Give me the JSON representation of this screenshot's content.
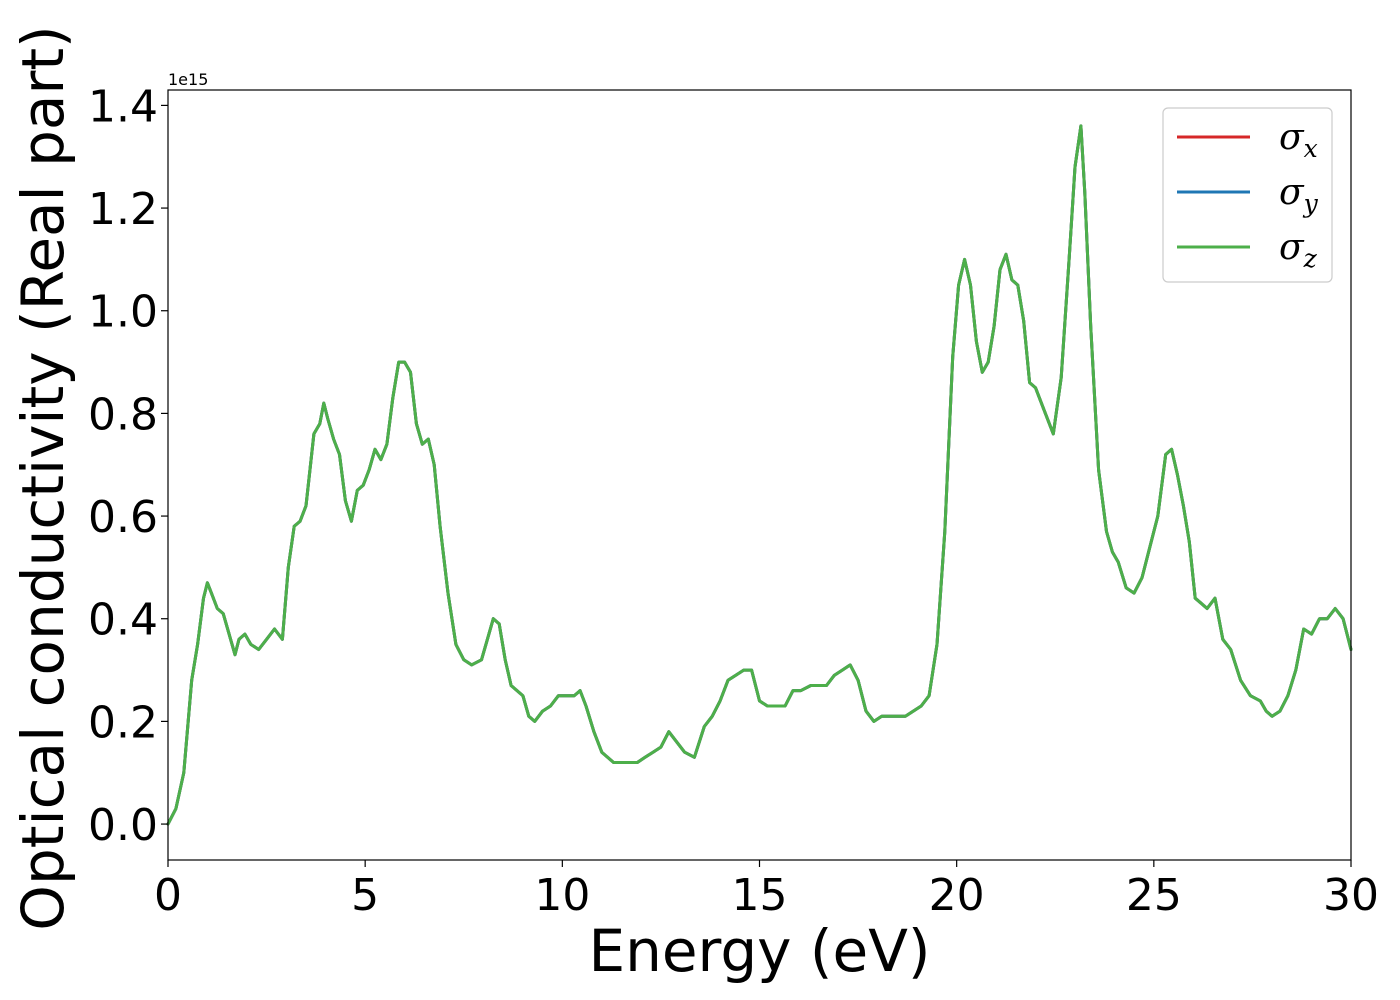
{
  "chart_data": {
    "type": "line",
    "xlabel": "Energy (eV)",
    "ylabel": "Optical conductivity (Real part)",
    "y_offset_label": "1e15",
    "y_scale": 1000000000000000.0,
    "xlim": [
      0,
      30
    ],
    "ylim": [
      -0.07,
      1.43
    ],
    "x_ticks": [
      0,
      5,
      10,
      15,
      20,
      25,
      30
    ],
    "x_tick_labels": [
      "0",
      "5",
      "10",
      "15",
      "20",
      "25",
      "30"
    ],
    "y_ticks": [
      0.0,
      0.2,
      0.4,
      0.6,
      0.8,
      1.0,
      1.2,
      1.4
    ],
    "y_tick_labels": [
      "0.0",
      "0.2",
      "0.4",
      "0.6",
      "0.8",
      "1.0",
      "1.2",
      "1.4"
    ],
    "grid": false,
    "legend_position": "top-right",
    "legend": [
      {
        "symbol": "σ",
        "sub": "x",
        "color": "#d62728"
      },
      {
        "symbol": "σ",
        "sub": "y",
        "color": "#1f77b4"
      },
      {
        "symbol": "σ",
        "sub": "z",
        "color": "#4daf4a"
      }
    ],
    "series_colors": [
      "#d62728",
      "#1f77b4",
      "#4daf4a"
    ],
    "x": [
      0,
      0.2,
      0.4,
      0.6,
      0.75,
      0.9,
      1.0,
      1.1,
      1.25,
      1.4,
      1.55,
      1.7,
      1.8,
      1.95,
      2.1,
      2.3,
      2.5,
      2.7,
      2.9,
      3.05,
      3.2,
      3.35,
      3.5,
      3.7,
      3.85,
      3.95,
      4.05,
      4.2,
      4.35,
      4.5,
      4.65,
      4.8,
      4.95,
      5.1,
      5.25,
      5.4,
      5.55,
      5.7,
      5.85,
      6.0,
      6.15,
      6.3,
      6.45,
      6.6,
      6.75,
      6.9,
      7.1,
      7.3,
      7.5,
      7.7,
      7.95,
      8.1,
      8.25,
      8.4,
      8.55,
      8.7,
      8.85,
      9.0,
      9.15,
      9.3,
      9.5,
      9.7,
      9.9,
      10.1,
      10.3,
      10.45,
      10.6,
      10.8,
      11.0,
      11.3,
      11.6,
      11.9,
      12.1,
      12.3,
      12.5,
      12.7,
      12.9,
      13.1,
      13.35,
      13.6,
      13.8,
      14.0,
      14.2,
      14.4,
      14.6,
      14.8,
      15.0,
      15.2,
      15.45,
      15.65,
      15.85,
      16.05,
      16.3,
      16.5,
      16.7,
      16.9,
      17.1,
      17.3,
      17.5,
      17.7,
      17.9,
      18.1,
      18.3,
      18.5,
      18.7,
      18.9,
      19.1,
      19.3,
      19.5,
      19.7,
      19.9,
      20.05,
      20.2,
      20.35,
      20.5,
      20.65,
      20.8,
      20.95,
      21.1,
      21.25,
      21.4,
      21.55,
      21.7,
      21.85,
      22.0,
      22.2,
      22.45,
      22.65,
      22.85,
      23.0,
      23.15,
      23.25,
      23.4,
      23.6,
      23.8,
      23.95,
      24.1,
      24.3,
      24.5,
      24.7,
      24.9,
      25.1,
      25.3,
      25.45,
      25.6,
      25.75,
      25.9,
      26.05,
      26.2,
      26.35,
      26.55,
      26.75,
      26.95,
      27.2,
      27.45,
      27.7,
      27.85,
      28.0,
      28.2,
      28.4,
      28.6,
      28.8,
      29.0,
      29.2,
      29.4,
      29.6,
      29.8,
      30.0
    ],
    "series": [
      {
        "values": [
          0.0,
          0.03,
          0.1,
          0.28,
          0.35,
          0.44,
          0.47,
          0.45,
          0.42,
          0.41,
          0.37,
          0.33,
          0.36,
          0.37,
          0.35,
          0.34,
          0.36,
          0.38,
          0.36,
          0.5,
          0.58,
          0.59,
          0.62,
          0.76,
          0.78,
          0.82,
          0.79,
          0.75,
          0.72,
          0.63,
          0.59,
          0.65,
          0.66,
          0.69,
          0.73,
          0.71,
          0.74,
          0.83,
          0.9,
          0.9,
          0.88,
          0.78,
          0.74,
          0.75,
          0.7,
          0.58,
          0.45,
          0.35,
          0.32,
          0.31,
          0.32,
          0.36,
          0.4,
          0.39,
          0.32,
          0.27,
          0.26,
          0.25,
          0.21,
          0.2,
          0.22,
          0.23,
          0.25,
          0.25,
          0.25,
          0.26,
          0.23,
          0.18,
          0.14,
          0.12,
          0.12,
          0.12,
          0.13,
          0.14,
          0.15,
          0.18,
          0.16,
          0.14,
          0.13,
          0.19,
          0.21,
          0.24,
          0.28,
          0.29,
          0.3,
          0.3,
          0.24,
          0.23,
          0.23,
          0.23,
          0.26,
          0.26,
          0.27,
          0.27,
          0.27,
          0.29,
          0.3,
          0.31,
          0.28,
          0.22,
          0.2,
          0.21,
          0.21,
          0.21,
          0.21,
          0.22,
          0.23,
          0.25,
          0.35,
          0.57,
          0.91,
          1.05,
          1.1,
          1.05,
          0.94,
          0.88,
          0.9,
          0.97,
          1.08,
          1.11,
          1.06,
          1.05,
          0.98,
          0.86,
          0.85,
          0.81,
          0.76,
          0.87,
          1.1,
          1.28,
          1.36,
          1.23,
          0.97,
          0.69,
          0.57,
          0.53,
          0.51,
          0.46,
          0.45,
          0.48,
          0.54,
          0.6,
          0.72,
          0.73,
          0.68,
          0.62,
          0.55,
          0.44,
          0.43,
          0.42,
          0.44,
          0.36,
          0.34,
          0.28,
          0.25,
          0.24,
          0.22,
          0.21,
          0.22,
          0.25,
          0.3,
          0.38,
          0.37,
          0.4,
          0.4,
          0.42,
          0.4,
          0.34
        ]
      },
      {
        "values": [
          0.0,
          0.03,
          0.1,
          0.28,
          0.35,
          0.44,
          0.47,
          0.45,
          0.42,
          0.41,
          0.37,
          0.33,
          0.36,
          0.37,
          0.35,
          0.34,
          0.36,
          0.38,
          0.36,
          0.5,
          0.58,
          0.59,
          0.62,
          0.76,
          0.78,
          0.82,
          0.79,
          0.75,
          0.72,
          0.63,
          0.59,
          0.65,
          0.66,
          0.69,
          0.73,
          0.71,
          0.74,
          0.83,
          0.9,
          0.9,
          0.88,
          0.78,
          0.74,
          0.75,
          0.7,
          0.58,
          0.45,
          0.35,
          0.32,
          0.31,
          0.32,
          0.36,
          0.4,
          0.39,
          0.32,
          0.27,
          0.26,
          0.25,
          0.21,
          0.2,
          0.22,
          0.23,
          0.25,
          0.25,
          0.25,
          0.26,
          0.23,
          0.18,
          0.14,
          0.12,
          0.12,
          0.12,
          0.13,
          0.14,
          0.15,
          0.18,
          0.16,
          0.14,
          0.13,
          0.19,
          0.21,
          0.24,
          0.28,
          0.29,
          0.3,
          0.3,
          0.24,
          0.23,
          0.23,
          0.23,
          0.26,
          0.26,
          0.27,
          0.27,
          0.27,
          0.29,
          0.3,
          0.31,
          0.28,
          0.22,
          0.2,
          0.21,
          0.21,
          0.21,
          0.21,
          0.22,
          0.23,
          0.25,
          0.35,
          0.57,
          0.91,
          1.05,
          1.1,
          1.05,
          0.94,
          0.88,
          0.9,
          0.97,
          1.08,
          1.11,
          1.06,
          1.05,
          0.98,
          0.86,
          0.85,
          0.81,
          0.76,
          0.87,
          1.1,
          1.28,
          1.36,
          1.23,
          0.97,
          0.69,
          0.57,
          0.53,
          0.51,
          0.46,
          0.45,
          0.48,
          0.54,
          0.6,
          0.72,
          0.73,
          0.68,
          0.62,
          0.55,
          0.44,
          0.43,
          0.42,
          0.44,
          0.36,
          0.34,
          0.28,
          0.25,
          0.24,
          0.22,
          0.21,
          0.22,
          0.25,
          0.3,
          0.38,
          0.37,
          0.4,
          0.4,
          0.42,
          0.4,
          0.34
        ]
      },
      {
        "values": [
          0.0,
          0.03,
          0.1,
          0.28,
          0.35,
          0.44,
          0.47,
          0.45,
          0.42,
          0.41,
          0.37,
          0.33,
          0.36,
          0.37,
          0.35,
          0.34,
          0.36,
          0.38,
          0.36,
          0.5,
          0.58,
          0.59,
          0.62,
          0.76,
          0.78,
          0.82,
          0.79,
          0.75,
          0.72,
          0.63,
          0.59,
          0.65,
          0.66,
          0.69,
          0.73,
          0.71,
          0.74,
          0.83,
          0.9,
          0.9,
          0.88,
          0.78,
          0.74,
          0.75,
          0.7,
          0.58,
          0.45,
          0.35,
          0.32,
          0.31,
          0.32,
          0.36,
          0.4,
          0.39,
          0.32,
          0.27,
          0.26,
          0.25,
          0.21,
          0.2,
          0.22,
          0.23,
          0.25,
          0.25,
          0.25,
          0.26,
          0.23,
          0.18,
          0.14,
          0.12,
          0.12,
          0.12,
          0.13,
          0.14,
          0.15,
          0.18,
          0.16,
          0.14,
          0.13,
          0.19,
          0.21,
          0.24,
          0.28,
          0.29,
          0.3,
          0.3,
          0.24,
          0.23,
          0.23,
          0.23,
          0.26,
          0.26,
          0.27,
          0.27,
          0.27,
          0.29,
          0.3,
          0.31,
          0.28,
          0.22,
          0.2,
          0.21,
          0.21,
          0.21,
          0.21,
          0.22,
          0.23,
          0.25,
          0.35,
          0.57,
          0.91,
          1.05,
          1.1,
          1.05,
          0.94,
          0.88,
          0.9,
          0.97,
          1.08,
          1.11,
          1.06,
          1.05,
          0.98,
          0.86,
          0.85,
          0.81,
          0.76,
          0.87,
          1.1,
          1.28,
          1.36,
          1.23,
          0.97,
          0.69,
          0.57,
          0.53,
          0.51,
          0.46,
          0.45,
          0.48,
          0.54,
          0.6,
          0.72,
          0.73,
          0.68,
          0.62,
          0.55,
          0.44,
          0.43,
          0.42,
          0.44,
          0.36,
          0.34,
          0.28,
          0.25,
          0.24,
          0.22,
          0.21,
          0.22,
          0.25,
          0.3,
          0.38,
          0.37,
          0.4,
          0.4,
          0.42,
          0.4,
          0.34
        ]
      }
    ]
  }
}
